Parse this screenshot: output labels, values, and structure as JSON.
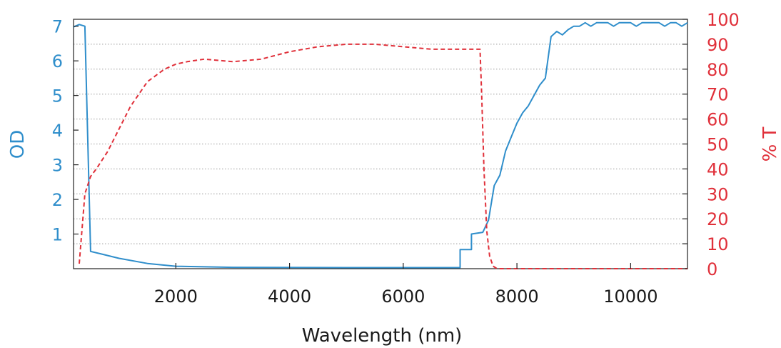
{
  "chart_data": {
    "type": "line",
    "xlabel": "Wavelength (nm)",
    "ylabel_left": "OD",
    "ylabel_right": "% T",
    "xlim": [
      200,
      11000
    ],
    "ylim_left": [
      0,
      7.2
    ],
    "ylim_right": [
      0,
      100
    ],
    "x_ticks": [
      2000,
      4000,
      6000,
      8000,
      10000
    ],
    "x_tick_labels": [
      "2000",
      "4000",
      "6000",
      "8000",
      "10000"
    ],
    "y_left_ticks": [
      1,
      2,
      3,
      4,
      5,
      6,
      7
    ],
    "y_left_tick_labels": [
      "1",
      "2",
      "3",
      "4",
      "5",
      "6",
      "7"
    ],
    "y_right_ticks": [
      0,
      10,
      20,
      30,
      40,
      50,
      60,
      70,
      80,
      90,
      100
    ],
    "y_right_tick_labels": [
      "0",
      "10",
      "20",
      "30",
      "40",
      "50",
      "60",
      "70",
      "80",
      "90",
      "100"
    ],
    "grid": "horizontal dotted",
    "colors": {
      "od": "#2f8ecb",
      "t": "#e0303a"
    },
    "series": [
      {
        "axis": "left",
        "style": "solid",
        "x": [
          200,
          300,
          400,
          500,
          700,
          1000,
          1500,
          2000,
          3000,
          5000,
          7000,
          7000,
          7200,
          7200,
          7400,
          7500,
          7600,
          7700,
          7800,
          7900,
          8000,
          8100,
          8200,
          8300,
          8400,
          8500,
          8600,
          8700,
          8800,
          8900,
          9000,
          9100,
          9200,
          9300,
          9400,
          9500,
          9600,
          9700,
          9800,
          9900,
          10000,
          10100,
          10200,
          10300,
          10400,
          10500,
          10600,
          10700,
          10800,
          10900,
          11000
        ],
        "values": [
          6.98,
          7.05,
          7.0,
          0.5,
          0.42,
          0.3,
          0.15,
          0.07,
          0.04,
          0.03,
          0.03,
          0.55,
          0.55,
          1.0,
          1.05,
          1.4,
          2.4,
          2.7,
          3.4,
          3.8,
          4.2,
          4.5,
          4.7,
          5.0,
          5.3,
          5.5,
          6.7,
          6.85,
          6.75,
          6.9,
          7.0,
          7.0,
          7.1,
          7.0,
          7.1,
          7.1,
          7.1,
          7.0,
          7.1,
          7.1,
          7.1,
          7.0,
          7.1,
          7.1,
          7.1,
          7.1,
          7.0,
          7.1,
          7.1,
          7.0,
          7.1
        ]
      },
      {
        "axis": "right",
        "style": "dashed",
        "x": [
          300,
          400,
          500,
          600,
          800,
          1000,
          1200,
          1500,
          1800,
          2000,
          2200,
          2500,
          3000,
          3500,
          4000,
          4500,
          5000,
          5500,
          6000,
          6500,
          7000,
          7350,
          7380,
          7420,
          7470,
          7520,
          7580,
          7650,
          7800,
          9000,
          11000
        ],
        "values": [
          2,
          30,
          37,
          40,
          47,
          56,
          65,
          75,
          80,
          82,
          83,
          84,
          83,
          84,
          87,
          89,
          90,
          90,
          89,
          88,
          88,
          88,
          70,
          40,
          15,
          5,
          1,
          0,
          0,
          0,
          0
        ]
      }
    ]
  }
}
